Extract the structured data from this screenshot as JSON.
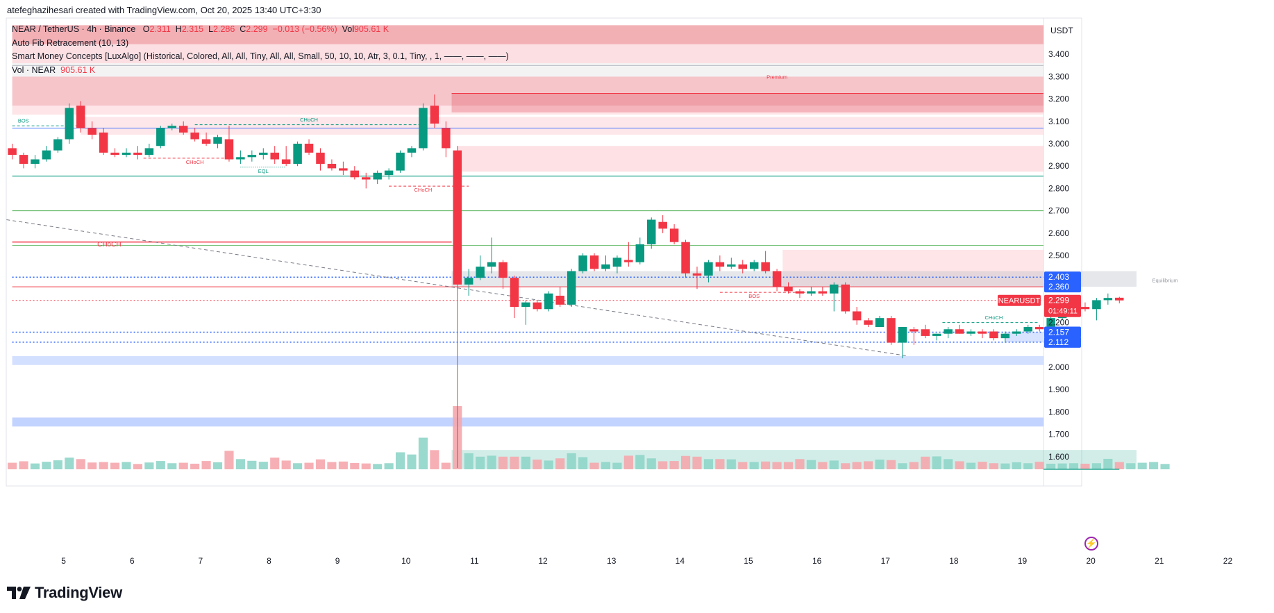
{
  "header": {
    "credit": "atefeghazihesari created with TradingView.com, Oct 20, 2025 13:40 UTC+3:30"
  },
  "legend": {
    "symbol": "NEAR / TetherUS · 4h · Binance",
    "o_label": "O",
    "o_value": "2.311",
    "h_label": "H",
    "h_value": "2.315",
    "l_label": "L",
    "l_value": "2.286",
    "c_label": "C",
    "c_value": "2.299",
    "change": "−0.013 (−0.56%)",
    "vol_label": "Vol",
    "vol_value": "905.61 K",
    "fib": "Auto Fib Retracement (10, 13)",
    "smc": "Smart Money Concepts [LuxAlgo] (Historical, Colored, All, All, Tiny, All, All, Small, 50, 10, 10, Atr, 3, 0.1, Tiny, , 1, ——, ——, ——)",
    "vol_row_label": "Vol · NEAR",
    "vol_row_value": "905.61 K"
  },
  "branding": {
    "logo_text": "TradingView",
    "logo_icon": "tradingview-logo-icon"
  },
  "colors": {
    "up": "#089981",
    "down": "#f23645",
    "up_vol": "#8fd5c9",
    "down_vol": "#f5a7ad",
    "blue_line": "#2962ff"
  },
  "chart_data": {
    "type": "candlestick",
    "currency_label": "USDT",
    "y_ticks": [
      "3.400",
      "3.300",
      "3.200",
      "3.100",
      "3.000",
      "2.900",
      "2.800",
      "2.700",
      "2.600",
      "2.500",
      "2.200",
      "2.000",
      "1.900",
      "1.800",
      "1.700",
      "1.600"
    ],
    "x_ticks": [
      {
        "label": "5",
        "x": 4.5
      },
      {
        "label": "6",
        "x": 10.5
      },
      {
        "label": "7",
        "x": 16.5
      },
      {
        "label": "8",
        "x": 22.5
      },
      {
        "label": "9",
        "x": 28.5
      },
      {
        "label": "10",
        "x": 34.5
      },
      {
        "label": "11",
        "x": 40.5
      },
      {
        "label": "12",
        "x": 46.5
      },
      {
        "label": "13",
        "x": 52.5
      },
      {
        "label": "14",
        "x": 58.5
      },
      {
        "label": "15",
        "x": 64.5
      },
      {
        "label": "16",
        "x": 70.5
      },
      {
        "label": "17",
        "x": 76.5
      },
      {
        "label": "18",
        "x": 82.5
      },
      {
        "label": "19",
        "x": 88.5
      },
      {
        "label": "20",
        "x": 94.5
      },
      {
        "label": "21",
        "x": 100.5
      },
      {
        "label": "22",
        "x": 106.5
      }
    ],
    "price_badges": [
      {
        "label": "2.403",
        "value": 2.403,
        "color": "#2962ff"
      },
      {
        "label": "2.360",
        "value": 2.36,
        "color": "#2962ff"
      },
      {
        "label": "2.157",
        "value": 2.157,
        "color": "#2962ff"
      },
      {
        "label": "2.112",
        "value": 2.112,
        "color": "#2962ff"
      }
    ],
    "current": {
      "symbol": "NEARUSDT",
      "price": "2.299",
      "value": 2.299,
      "countdown": "01:49:11"
    },
    "candles": [
      {
        "o": 2.98,
        "h": 3.0,
        "l": 2.93,
        "c": 2.95
      },
      {
        "o": 2.95,
        "h": 2.96,
        "l": 2.89,
        "c": 2.91
      },
      {
        "o": 2.91,
        "h": 2.95,
        "l": 2.89,
        "c": 2.93
      },
      {
        "o": 2.93,
        "h": 2.99,
        "l": 2.92,
        "c": 2.97
      },
      {
        "o": 2.97,
        "h": 3.03,
        "l": 2.96,
        "c": 3.02
      },
      {
        "o": 3.02,
        "h": 3.18,
        "l": 3.0,
        "c": 3.16
      },
      {
        "o": 3.17,
        "h": 3.19,
        "l": 3.05,
        "c": 3.07
      },
      {
        "o": 3.07,
        "h": 3.1,
        "l": 3.02,
        "c": 3.04
      },
      {
        "o": 3.05,
        "h": 3.07,
        "l": 2.95,
        "c": 2.96
      },
      {
        "o": 2.96,
        "h": 2.98,
        "l": 2.94,
        "c": 2.95
      },
      {
        "o": 2.95,
        "h": 2.98,
        "l": 2.94,
        "c": 2.96
      },
      {
        "o": 2.96,
        "h": 2.99,
        "l": 2.93,
        "c": 2.95
      },
      {
        "o": 2.95,
        "h": 3.0,
        "l": 2.94,
        "c": 2.98
      },
      {
        "o": 2.99,
        "h": 3.08,
        "l": 2.98,
        "c": 3.07
      },
      {
        "o": 3.07,
        "h": 3.09,
        "l": 3.06,
        "c": 3.08
      },
      {
        "o": 3.08,
        "h": 3.1,
        "l": 3.04,
        "c": 3.05
      },
      {
        "o": 3.05,
        "h": 3.07,
        "l": 3.01,
        "c": 3.02
      },
      {
        "o": 3.02,
        "h": 3.05,
        "l": 2.99,
        "c": 3.0
      },
      {
        "o": 3.0,
        "h": 3.04,
        "l": 2.98,
        "c": 3.03
      },
      {
        "o": 3.02,
        "h": 3.08,
        "l": 2.92,
        "c": 2.93
      },
      {
        "o": 2.93,
        "h": 2.97,
        "l": 2.91,
        "c": 2.94
      },
      {
        "o": 2.94,
        "h": 2.97,
        "l": 2.92,
        "c": 2.95
      },
      {
        "o": 2.95,
        "h": 2.98,
        "l": 2.93,
        "c": 2.96
      },
      {
        "o": 2.96,
        "h": 2.99,
        "l": 2.91,
        "c": 2.93
      },
      {
        "o": 2.93,
        "h": 2.99,
        "l": 2.9,
        "c": 2.91
      },
      {
        "o": 2.91,
        "h": 3.01,
        "l": 2.9,
        "c": 3.0
      },
      {
        "o": 3.0,
        "h": 3.02,
        "l": 2.95,
        "c": 2.96
      },
      {
        "o": 2.96,
        "h": 2.98,
        "l": 2.88,
        "c": 2.91
      },
      {
        "o": 2.91,
        "h": 2.93,
        "l": 2.88,
        "c": 2.89
      },
      {
        "o": 2.89,
        "h": 2.92,
        "l": 2.86,
        "c": 2.88
      },
      {
        "o": 2.88,
        "h": 2.9,
        "l": 2.84,
        "c": 2.85
      },
      {
        "o": 2.85,
        "h": 2.87,
        "l": 2.8,
        "c": 2.84
      },
      {
        "o": 2.84,
        "h": 2.88,
        "l": 2.82,
        "c": 2.87
      },
      {
        "o": 2.86,
        "h": 2.89,
        "l": 2.84,
        "c": 2.88
      },
      {
        "o": 2.88,
        "h": 2.97,
        "l": 2.87,
        "c": 2.96
      },
      {
        "o": 2.96,
        "h": 2.99,
        "l": 2.94,
        "c": 2.98
      },
      {
        "o": 2.98,
        "h": 3.18,
        "l": 2.97,
        "c": 3.16
      },
      {
        "o": 3.17,
        "h": 3.22,
        "l": 3.07,
        "c": 3.09
      },
      {
        "o": 3.07,
        "h": 3.1,
        "l": 2.94,
        "c": 2.98
      },
      {
        "o": 2.97,
        "h": 2.99,
        "l": 1.55,
        "c": 2.37
      },
      {
        "o": 2.37,
        "h": 2.44,
        "l": 2.32,
        "c": 2.4
      },
      {
        "o": 2.4,
        "h": 2.5,
        "l": 2.39,
        "c": 2.45
      },
      {
        "o": 2.45,
        "h": 2.58,
        "l": 2.42,
        "c": 2.47
      },
      {
        "o": 2.47,
        "h": 2.48,
        "l": 2.35,
        "c": 2.4
      },
      {
        "o": 2.4,
        "h": 2.41,
        "l": 2.22,
        "c": 2.27
      },
      {
        "o": 2.27,
        "h": 2.3,
        "l": 2.19,
        "c": 2.29
      },
      {
        "o": 2.29,
        "h": 2.3,
        "l": 2.25,
        "c": 2.26
      },
      {
        "o": 2.26,
        "h": 2.34,
        "l": 2.25,
        "c": 2.33
      },
      {
        "o": 2.32,
        "h": 2.36,
        "l": 2.27,
        "c": 2.28
      },
      {
        "o": 2.28,
        "h": 2.44,
        "l": 2.27,
        "c": 2.43
      },
      {
        "o": 2.43,
        "h": 2.51,
        "l": 2.42,
        "c": 2.5
      },
      {
        "o": 2.5,
        "h": 2.51,
        "l": 2.43,
        "c": 2.44
      },
      {
        "o": 2.44,
        "h": 2.5,
        "l": 2.43,
        "c": 2.46
      },
      {
        "o": 2.45,
        "h": 2.5,
        "l": 2.42,
        "c": 2.49
      },
      {
        "o": 2.48,
        "h": 2.56,
        "l": 2.45,
        "c": 2.47
      },
      {
        "o": 2.47,
        "h": 2.58,
        "l": 2.46,
        "c": 2.55
      },
      {
        "o": 2.55,
        "h": 2.67,
        "l": 2.53,
        "c": 2.66
      },
      {
        "o": 2.65,
        "h": 2.68,
        "l": 2.6,
        "c": 2.62
      },
      {
        "o": 2.62,
        "h": 2.64,
        "l": 2.55,
        "c": 2.56
      },
      {
        "o": 2.56,
        "h": 2.57,
        "l": 2.4,
        "c": 2.42
      },
      {
        "o": 2.42,
        "h": 2.45,
        "l": 2.35,
        "c": 2.41
      },
      {
        "o": 2.41,
        "h": 2.48,
        "l": 2.38,
        "c": 2.47
      },
      {
        "o": 2.47,
        "h": 2.5,
        "l": 2.43,
        "c": 2.45
      },
      {
        "o": 2.45,
        "h": 2.49,
        "l": 2.44,
        "c": 2.46
      },
      {
        "o": 2.46,
        "h": 2.48,
        "l": 2.42,
        "c": 2.44
      },
      {
        "o": 2.44,
        "h": 2.48,
        "l": 2.43,
        "c": 2.47
      },
      {
        "o": 2.47,
        "h": 2.52,
        "l": 2.42,
        "c": 2.43
      },
      {
        "o": 2.43,
        "h": 2.44,
        "l": 2.34,
        "c": 2.36
      },
      {
        "o": 2.36,
        "h": 2.38,
        "l": 2.33,
        "c": 2.34
      },
      {
        "o": 2.34,
        "h": 2.35,
        "l": 2.31,
        "c": 2.33
      },
      {
        "o": 2.33,
        "h": 2.36,
        "l": 2.32,
        "c": 2.34
      },
      {
        "o": 2.34,
        "h": 2.36,
        "l": 2.32,
        "c": 2.33
      },
      {
        "o": 2.33,
        "h": 2.38,
        "l": 2.25,
        "c": 2.37
      },
      {
        "o": 2.37,
        "h": 2.38,
        "l": 2.24,
        "c": 2.25
      },
      {
        "o": 2.25,
        "h": 2.27,
        "l": 2.19,
        "c": 2.21
      },
      {
        "o": 2.21,
        "h": 2.22,
        "l": 2.18,
        "c": 2.19
      },
      {
        "o": 2.18,
        "h": 2.23,
        "l": 2.18,
        "c": 2.22
      },
      {
        "o": 2.22,
        "h": 2.23,
        "l": 2.1,
        "c": 2.11
      },
      {
        "o": 2.11,
        "h": 2.18,
        "l": 2.04,
        "c": 2.18
      },
      {
        "o": 2.17,
        "h": 2.18,
        "l": 2.1,
        "c": 2.16
      },
      {
        "o": 2.17,
        "h": 2.19,
        "l": 2.13,
        "c": 2.14
      },
      {
        "o": 2.14,
        "h": 2.15,
        "l": 2.12,
        "c": 2.15
      },
      {
        "o": 2.15,
        "h": 2.18,
        "l": 2.13,
        "c": 2.17
      },
      {
        "o": 2.17,
        "h": 2.19,
        "l": 2.15,
        "c": 2.15
      },
      {
        "o": 2.15,
        "h": 2.17,
        "l": 2.14,
        "c": 2.16
      },
      {
        "o": 2.16,
        "h": 2.17,
        "l": 2.13,
        "c": 2.15
      },
      {
        "o": 2.16,
        "h": 2.17,
        "l": 2.12,
        "c": 2.13
      },
      {
        "o": 2.13,
        "h": 2.16,
        "l": 2.11,
        "c": 2.15
      },
      {
        "o": 2.15,
        "h": 2.17,
        "l": 2.14,
        "c": 2.16
      },
      {
        "o": 2.16,
        "h": 2.19,
        "l": 2.15,
        "c": 2.18
      },
      {
        "o": 2.18,
        "h": 2.19,
        "l": 2.16,
        "c": 2.17
      },
      {
        "o": 2.17,
        "h": 2.23,
        "l": 2.14,
        "c": 2.22
      },
      {
        "o": 2.22,
        "h": 2.28,
        "l": 2.21,
        "c": 2.26
      },
      {
        "o": 2.26,
        "h": 2.28,
        "l": 2.24,
        "c": 2.27
      },
      {
        "o": 2.27,
        "h": 2.29,
        "l": 2.25,
        "c": 2.26
      },
      {
        "o": 2.26,
        "h": 2.31,
        "l": 2.21,
        "c": 2.3
      },
      {
        "o": 2.3,
        "h": 2.33,
        "l": 2.28,
        "c": 2.31
      },
      {
        "o": 2.311,
        "h": 2.315,
        "l": 2.286,
        "c": 2.299
      }
    ],
    "volumes_rel": [
      0.27,
      0.33,
      0.24,
      0.31,
      0.37,
      0.48,
      0.42,
      0.28,
      0.3,
      0.27,
      0.3,
      0.22,
      0.28,
      0.34,
      0.25,
      0.27,
      0.23,
      0.34,
      0.29,
      0.76,
      0.42,
      0.35,
      0.31,
      0.48,
      0.36,
      0.25,
      0.27,
      0.41,
      0.3,
      0.32,
      0.26,
      0.24,
      0.22,
      0.25,
      0.7,
      0.61,
      1.3,
      0.79,
      0.27,
      2.6,
      0.66,
      0.52,
      0.56,
      0.52,
      0.52,
      0.52,
      0.4,
      0.36,
      0.45,
      0.66,
      0.5,
      0.27,
      0.3,
      0.27,
      0.56,
      0.59,
      0.45,
      0.33,
      0.34,
      0.55,
      0.52,
      0.42,
      0.42,
      0.41,
      0.3,
      0.3,
      0.32,
      0.3,
      0.3,
      0.42,
      0.38,
      0.3,
      0.36,
      0.25,
      0.3,
      0.33,
      0.4,
      0.38,
      0.25,
      0.3,
      0.52,
      0.53,
      0.42,
      0.33,
      0.27,
      0.31,
      0.25,
      0.24,
      0.29,
      0.25,
      0.31,
      0.23,
      0.24,
      0.25,
      0.23,
      0.25,
      0.43,
      0.3,
      0.25,
      0.27,
      0.3,
      0.22
    ],
    "horizontal_lines": [
      {
        "value": 2.855,
        "color": "#089981",
        "width": 1.2,
        "style": "solid",
        "x0": 0,
        "x1": "end"
      },
      {
        "value": 2.7,
        "color": "#4caf50",
        "width": 1,
        "style": "solid",
        "x0": 0,
        "x1": "end"
      },
      {
        "value": 2.545,
        "color": "#4caf50",
        "width": 0.8,
        "style": "solid",
        "x0": 0,
        "x1": "end"
      },
      {
        "value": 2.56,
        "color": "#f23645",
        "width": 1.5,
        "style": "solid",
        "x0": 0,
        "x1": 38.5
      },
      {
        "value": 3.07,
        "color": "#2962ff",
        "width": 0.8,
        "style": "solid",
        "x0": 0,
        "x1": "end"
      },
      {
        "value": 3.35,
        "color": "#b0b3bb",
        "width": 0.8,
        "style": "solid",
        "x0": 0,
        "x1": "end"
      },
      {
        "value": 2.403,
        "color": "#2962ff",
        "width": 1.5,
        "style": "dotted",
        "x0": 0,
        "x1": "end"
      },
      {
        "value": 2.36,
        "color": "#f23645",
        "width": 1,
        "style": "solid",
        "x0": 0,
        "x1": "end"
      },
      {
        "value": 2.157,
        "color": "#2962ff",
        "width": 1.5,
        "style": "dotted",
        "x0": 0,
        "x1": "end"
      },
      {
        "value": 2.112,
        "color": "#2962ff",
        "width": 1.5,
        "style": "dotted",
        "x0": 0,
        "x1": "end"
      },
      {
        "value": 2.299,
        "color": "#f23645",
        "width": 1,
        "style": "dotted",
        "x0": 0,
        "x1": "end"
      },
      {
        "value": 3.225,
        "color": "#f23645",
        "width": 1,
        "style": "solid",
        "x0": 38.5,
        "x1": "end"
      }
    ],
    "zones": [
      {
        "top": 3.53,
        "bottom": 3.445,
        "color": "rgba(226,80,90,0.45)",
        "x0": 0,
        "x1": "end"
      },
      {
        "top": 3.445,
        "bottom": 3.36,
        "color": "rgba(248,170,178,0.38)",
        "x0": 0,
        "x1": "end"
      },
      {
        "top": 3.36,
        "bottom": 3.3,
        "color": "rgba(200,200,205,0.22)",
        "x0": 0,
        "x1": "end"
      },
      {
        "top": 3.3,
        "bottom": 3.17,
        "color": "rgba(229,110,122,0.40)",
        "x0": 0,
        "x1": "end"
      },
      {
        "top": 3.17,
        "bottom": 3.13,
        "color": "rgba(248,170,178,0.30)",
        "x0": 0,
        "x1": "end"
      },
      {
        "top": 3.225,
        "bottom": 3.14,
        "color": "rgba(229,90,102,0.35)",
        "x0": 38.5,
        "x1": "end"
      },
      {
        "top": 3.12,
        "bottom": 3.04,
        "color": "rgba(248,170,178,0.28)",
        "x0": 6,
        "x1": "end"
      },
      {
        "top": 2.99,
        "bottom": 2.875,
        "color": "rgba(248,170,178,0.35)",
        "x0": 39,
        "x1": "end"
      },
      {
        "top": 2.525,
        "bottom": 2.36,
        "color": "rgba(248,170,178,0.30)",
        "x0": 67.5,
        "x1": "end"
      },
      {
        "top": 2.43,
        "bottom": 2.36,
        "color": "rgba(180,185,195,0.35)",
        "x0": 38.5,
        "x1": 98.5
      },
      {
        "top": 2.157,
        "bottom": 2.112,
        "color": "rgba(41,98,255,0.18)",
        "x0": 87,
        "x1": "end"
      },
      {
        "top": 2.05,
        "bottom": 2.01,
        "color": "rgba(41,98,255,0.20)",
        "x0": 0,
        "x1": "end"
      },
      {
        "top": 1.775,
        "bottom": 1.735,
        "color": "rgba(41,98,255,0.28)",
        "x0": 0,
        "x1": "end"
      },
      {
        "top": 1.63,
        "bottom": 1.545,
        "color": "rgba(8,153,129,0.18)",
        "x0": 38.5,
        "x1": 98.5
      }
    ],
    "trendline": {
      "x0": -0.5,
      "y0": 2.66,
      "x1": 78.5,
      "y1": 2.05,
      "color": "#787b86",
      "style": "dashed"
    },
    "structure_lines": [
      {
        "x0": 0,
        "x1": 6,
        "value": 3.08,
        "color": "#089981",
        "style": "dashed"
      },
      {
        "x0": 16,
        "x1": 36,
        "value": 3.085,
        "color": "#089981",
        "style": "dashed"
      },
      {
        "x0": 11.5,
        "x1": 20,
        "value": 2.935,
        "color": "#f23645",
        "style": "dashed"
      },
      {
        "x0": 20,
        "x1": 24,
        "value": 2.895,
        "color": "#089981",
        "style": "dotted"
      },
      {
        "x0": 33,
        "x1": 40,
        "value": 2.81,
        "color": "#f23645",
        "style": "dashed"
      },
      {
        "x0": 62,
        "x1": 70,
        "value": 2.335,
        "color": "#f23645",
        "style": "dashed"
      },
      {
        "x0": 81.5,
        "x1": 90,
        "value": 2.2,
        "color": "#089981",
        "style": "dashed"
      }
    ],
    "annotations": [
      {
        "text": "BOS",
        "x": 0.5,
        "value": 3.095,
        "color": "#089981",
        "anchor": "start"
      },
      {
        "text": "CHoCH",
        "x": 26,
        "value": 3.1,
        "color": "#089981",
        "anchor": "middle"
      },
      {
        "text": "CHoCH",
        "x": 16,
        "value": 2.91,
        "color": "#f23645",
        "anchor": "middle"
      },
      {
        "text": "EQL",
        "x": 22,
        "value": 2.87,
        "color": "#089981",
        "anchor": "middle"
      },
      {
        "text": "CHoCH",
        "x": 36,
        "value": 2.785,
        "color": "#f23645",
        "anchor": "middle"
      },
      {
        "text": "CHoCH",
        "x": 8.5,
        "value": 2.54,
        "color": "#f23645",
        "anchor": "middle",
        "big": true
      },
      {
        "text": "Premium",
        "x": 67,
        "value": 3.29,
        "color": "#f23645",
        "anchor": "middle"
      },
      {
        "text": "Equilibrium",
        "x": 101,
        "value": 2.38,
        "color": "#9598a1",
        "anchor": "middle"
      },
      {
        "text": "BOS",
        "x": 65,
        "value": 2.31,
        "color": "#f23645",
        "anchor": "middle"
      },
      {
        "text": "CHoCH",
        "x": 86,
        "value": 2.215,
        "color": "#089981",
        "anchor": "middle"
      }
    ]
  }
}
